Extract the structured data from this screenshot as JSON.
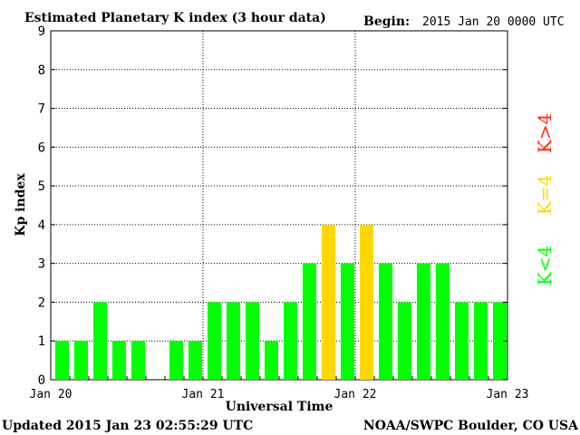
{
  "chart_data": {
    "type": "bar",
    "title": "Estimated Planetary K index (3 hour data)",
    "begin_label": "Begin:",
    "begin_value": "2015 Jan 20 0000 UTC",
    "xlabel": "Universal Time",
    "ylabel": "Kp index",
    "ylim": [
      0,
      9
    ],
    "yticks": [
      "0",
      "1",
      "2",
      "3",
      "4",
      "5",
      "6",
      "7",
      "8",
      "9"
    ],
    "xticks": [
      "Jan 20",
      "Jan 21",
      "Jan 22",
      "Jan 23"
    ],
    "bins_per_day": 8,
    "values": [
      1,
      1,
      2,
      1,
      1,
      0,
      1,
      1,
      2,
      2,
      2,
      1,
      2,
      3,
      4,
      3,
      4,
      3,
      2,
      3,
      3,
      2,
      2,
      2
    ],
    "grid": true,
    "legend": [
      {
        "label": "K<4",
        "color": "#00ff00"
      },
      {
        "label": "K=4",
        "color": "#ffd700"
      },
      {
        "label": "K>4",
        "color": "#ff2a00"
      }
    ],
    "colors": {
      "below": "#00ff00",
      "equal": "#ffd700",
      "above": "#ff2a00"
    }
  },
  "footer": {
    "updated": "Updated 2015 Jan 23 02:55:29 UTC",
    "source": "NOAA/SWPC Boulder, CO USA"
  }
}
